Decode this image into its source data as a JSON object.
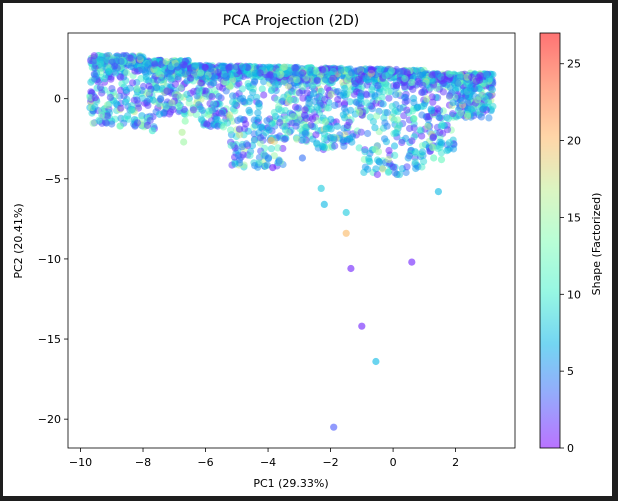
{
  "chart_data": {
    "type": "scatter",
    "title": "PCA Projection (2D)",
    "xlabel": "PC1 (29.33%)",
    "ylabel": "PC2 (20.41%)",
    "xlim": [
      -10.4,
      3.9
    ],
    "ylim": [
      -21.8,
      4.1
    ],
    "xticks": [
      -10,
      -8,
      -6,
      -4,
      -2,
      0,
      2
    ],
    "yticks": [
      0,
      -5,
      -10,
      -15,
      -20
    ],
    "grid": false,
    "legend": "none",
    "alpha": 0.5,
    "colormap": "rainbow",
    "colorbar": {
      "label": "Shape (Factorized)",
      "min": 0,
      "max": 27,
      "ticks": [
        0,
        5,
        10,
        15,
        20,
        25
      ],
      "colors": [
        "#8000ff",
        "#4062fa",
        "#01b3e7",
        "#41f0cc",
        "#80feb3",
        "#c0ec8e",
        "#ffb360",
        "#ff6232",
        "#ff0000"
      ]
    },
    "cluster": {
      "description_free": true,
      "x_range": [
        -9.7,
        3.2
      ],
      "y_range": [
        -4.8,
        2.9
      ],
      "approx_points": 2600
    },
    "points": [
      {
        "x": -1.9,
        "y": -20.5,
        "c": 3
      },
      {
        "x": -0.55,
        "y": -16.4,
        "c": 7
      },
      {
        "x": -1.0,
        "y": -14.2,
        "c": 1
      },
      {
        "x": -1.35,
        "y": -10.6,
        "c": 1
      },
      {
        "x": 0.6,
        "y": -10.2,
        "c": 1
      },
      {
        "x": -1.5,
        "y": -8.4,
        "c": 20
      },
      {
        "x": -1.5,
        "y": -7.1,
        "c": 8
      },
      {
        "x": -2.2,
        "y": -6.6,
        "c": 7
      },
      {
        "x": -2.3,
        "y": -5.6,
        "c": 8
      },
      {
        "x": 1.45,
        "y": -5.8,
        "c": 7
      },
      {
        "x": -7.7,
        "y": -2.0,
        "c": 10
      },
      {
        "x": -6.7,
        "y": -2.7,
        "c": 15
      },
      {
        "x": -6.65,
        "y": -1.4,
        "c": 14
      },
      {
        "x": -6.75,
        "y": -2.1,
        "c": 16
      },
      {
        "x": -6.85,
        "y": -0.5,
        "c": 12
      },
      {
        "x": -3.85,
        "y": -4.3,
        "c": 1
      },
      {
        "x": -3.9,
        "y": -2.6,
        "c": 20
      },
      {
        "x": -2.9,
        "y": -3.7,
        "c": 4
      },
      {
        "x": 1.3,
        "y": -3.7,
        "c": 12
      },
      {
        "x": 1.55,
        "y": -3.8,
        "c": 12
      }
    ]
  }
}
